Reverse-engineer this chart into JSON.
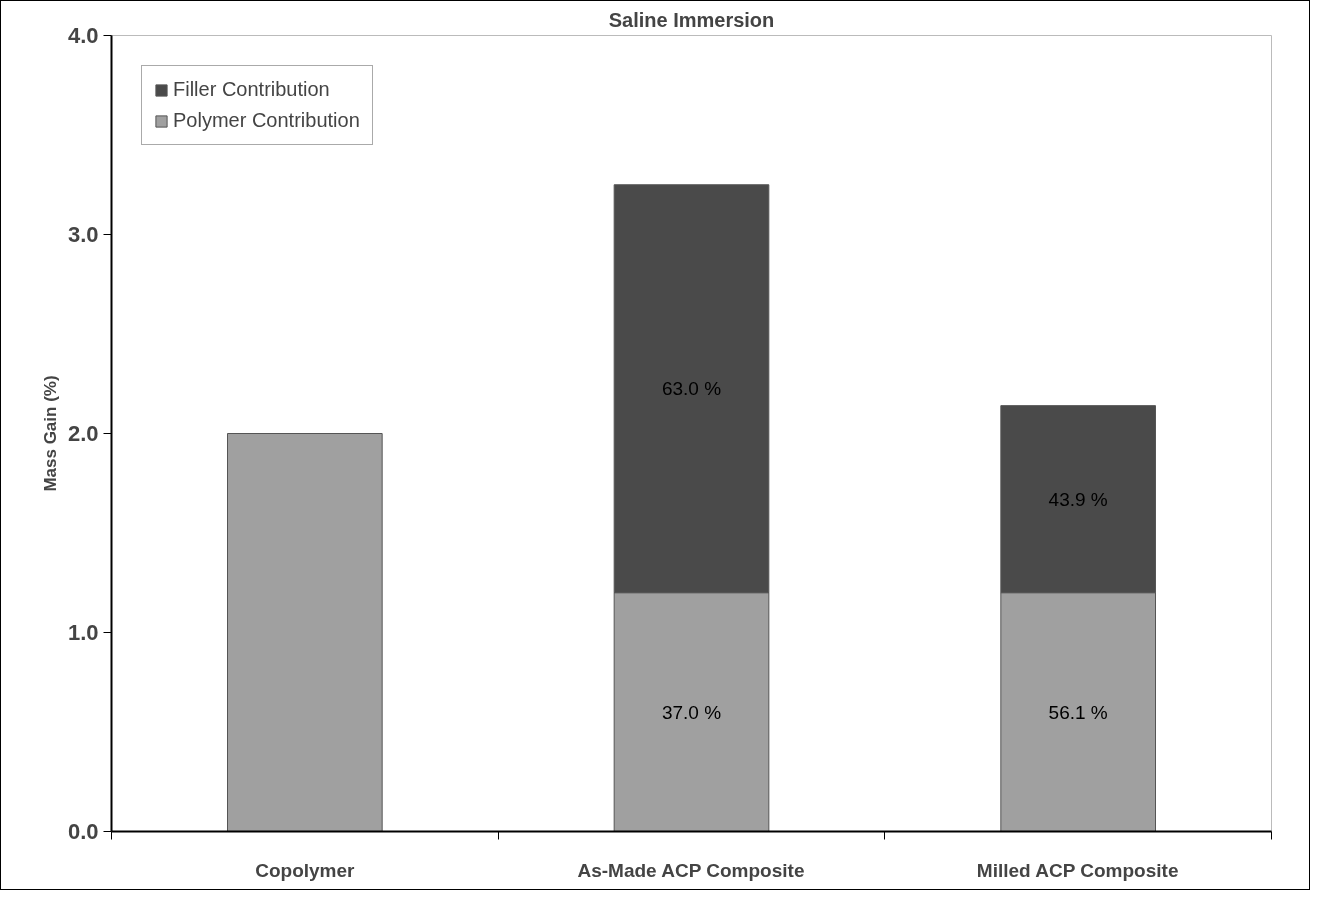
{
  "chart_data": {
    "type": "bar",
    "title": "Saline Immersion",
    "ylabel": "Mass Gain (%)",
    "stacked": true,
    "categories": [
      "Copolymer",
      "As-Made ACP Composite",
      "Milled ACP Composite"
    ],
    "series": [
      {
        "name": "Polymer Contribution",
        "color": "#a0a0a0",
        "values": [
          2.0,
          1.2,
          1.2
        ]
      },
      {
        "name": "Filler Contribution",
        "color": "#4a4a4a",
        "values": [
          null,
          2.05,
          0.94
        ]
      }
    ],
    "annotations": [
      "37.0 %",
      "63.0 %",
      "56.1 %",
      "43.9 %"
    ],
    "ylim": [
      0,
      4
    ],
    "yticks": [
      {
        "value": 0,
        "label": "0.0"
      },
      {
        "value": 1,
        "label": "1.0"
      },
      {
        "value": 2,
        "label": "2.0"
      },
      {
        "value": 3,
        "label": "3.0"
      },
      {
        "value": 4,
        "label": "4.0"
      }
    ],
    "grid": false,
    "legend": "top left"
  }
}
